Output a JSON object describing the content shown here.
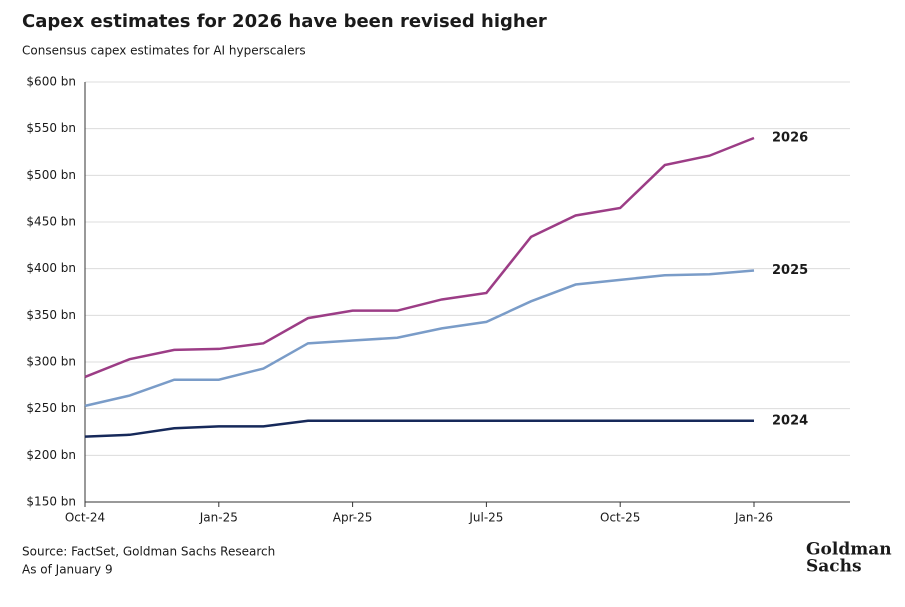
{
  "chart_data": {
    "type": "line",
    "title": "Capex estimates for 2026 have been revised higher",
    "subtitle": "Consensus capex estimates for AI hyperscalers",
    "categories": [
      "Oct-24",
      null,
      null,
      "Jan-25",
      null,
      null,
      "Apr-25",
      null,
      null,
      "Jul-25",
      null,
      null,
      "Oct-25",
      null,
      null,
      "Jan-26"
    ],
    "series": [
      {
        "name": "2026",
        "color": "#9c3d86",
        "values": [
          284,
          303,
          313,
          314,
          320,
          347,
          355,
          355,
          367,
          374,
          434,
          457,
          465,
          511,
          521,
          540
        ]
      },
      {
        "name": "2025",
        "color": "#7a9cc8",
        "values": [
          253,
          264,
          281,
          281,
          293,
          320,
          323,
          326,
          336,
          343,
          365,
          383,
          388,
          393,
          394,
          398
        ]
      },
      {
        "name": "2024",
        "color": "#16295a",
        "values": [
          220,
          222,
          229,
          231,
          231,
          237,
          237,
          237,
          237,
          237,
          237,
          237,
          237,
          237,
          237,
          237
        ]
      }
    ],
    "ylim": [
      150,
      600
    ],
    "yticks": [
      {
        "value": 150,
        "label": "$150 bn"
      },
      {
        "value": 200,
        "label": "$200 bn"
      },
      {
        "value": 250,
        "label": "$250 bn"
      },
      {
        "value": 300,
        "label": "$300 bn"
      },
      {
        "value": 350,
        "label": "$350 bn"
      },
      {
        "value": 400,
        "label": "$400 bn"
      },
      {
        "value": 450,
        "label": "$450 bn"
      },
      {
        "value": 500,
        "label": "$500 bn"
      },
      {
        "value": 550,
        "label": "$550 bn"
      },
      {
        "value": 600,
        "label": "$600 bn"
      }
    ],
    "grid": true,
    "source": "Source: FactSet, Goldman Sachs Research",
    "note": "As of January 9",
    "brand": [
      "Goldman",
      "Sachs"
    ]
  }
}
